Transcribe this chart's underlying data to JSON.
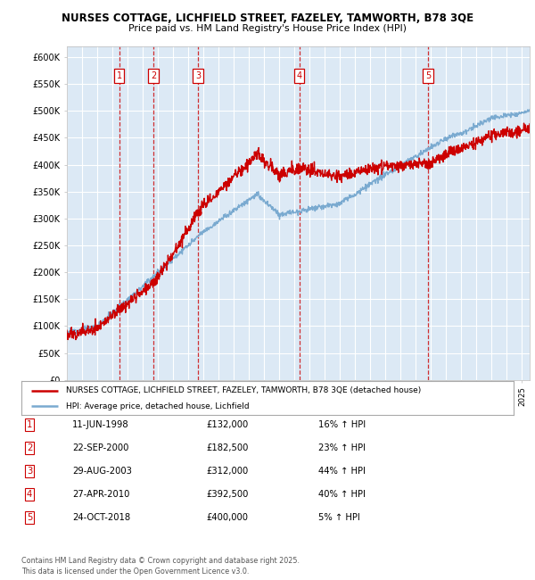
{
  "title1": "NURSES COTTAGE, LICHFIELD STREET, FAZELEY, TAMWORTH, B78 3QE",
  "title2": "Price paid vs. HM Land Registry's House Price Index (HPI)",
  "ylabel_ticks": [
    "£0",
    "£50K",
    "£100K",
    "£150K",
    "£200K",
    "£250K",
    "£300K",
    "£350K",
    "£400K",
    "£450K",
    "£500K",
    "£550K",
    "£600K"
  ],
  "ytick_vals": [
    0,
    50000,
    100000,
    150000,
    200000,
    250000,
    300000,
    350000,
    400000,
    450000,
    500000,
    550000,
    600000
  ],
  "ylim": [
    0,
    620000
  ],
  "xlim_start": 1995.0,
  "xlim_end": 2025.5,
  "sale_color": "#cc0000",
  "hpi_color": "#7aaad0",
  "bg_color": "#dce9f5",
  "grid_color": "#ffffff",
  "sale_points": [
    {
      "num": 1,
      "date_num": 1998.44,
      "price": 132000,
      "label": "1",
      "date_str": "11-JUN-1998",
      "pct": "16%"
    },
    {
      "num": 2,
      "date_num": 2000.72,
      "price": 182500,
      "label": "2",
      "date_str": "22-SEP-2000",
      "pct": "23%"
    },
    {
      "num": 3,
      "date_num": 2003.65,
      "price": 312000,
      "label": "3",
      "date_str": "29-AUG-2003",
      "pct": "44%"
    },
    {
      "num": 4,
      "date_num": 2010.32,
      "price": 392500,
      "label": "4",
      "date_str": "27-APR-2010",
      "pct": "40%"
    },
    {
      "num": 5,
      "date_num": 2018.81,
      "price": 400000,
      "label": "5",
      "date_str": "24-OCT-2018",
      "pct": "5%"
    }
  ],
  "legend_line1": "NURSES COTTAGE, LICHFIELD STREET, FAZELEY, TAMWORTH, B78 3QE (detached house)",
  "legend_line2": "HPI: Average price, detached house, Lichfield",
  "footnote": "Contains HM Land Registry data © Crown copyright and database right 2025.\nThis data is licensed under the Open Government Licence v3.0.",
  "table_rows": [
    [
      "1",
      "11-JUN-1998",
      "£132,000",
      "16% ↑ HPI"
    ],
    [
      "2",
      "22-SEP-2000",
      "£182,500",
      "23% ↑ HPI"
    ],
    [
      "3",
      "29-AUG-2003",
      "£312,000",
      "44% ↑ HPI"
    ],
    [
      "4",
      "27-APR-2010",
      "£392,500",
      "40% ↑ HPI"
    ],
    [
      "5",
      "24-OCT-2018",
      "£400,000",
      "5% ↑ HPI"
    ]
  ]
}
